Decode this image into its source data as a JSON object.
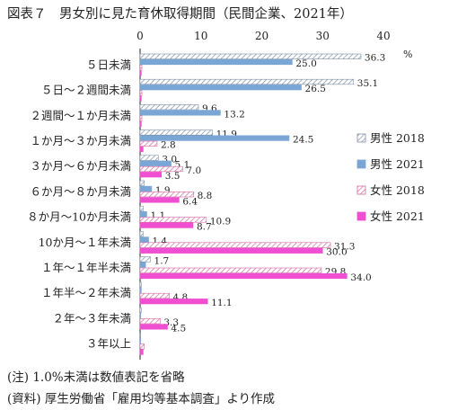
{
  "title": "図表７　男女別に見た育休取得期間（民間企業、2021年）",
  "notes": {
    "note1": "(注) 1.0%未満は数値表記を省略",
    "note2": "(資料) 厚生労働省「雇用均等基本調査」より作成"
  },
  "colors": {
    "male2018": "#ffffff",
    "male2018_hatch": "#7f8fa6",
    "male2021": "#7aa6d6",
    "female2018": "#ffffff",
    "female2018_hatch": "#d26aa0",
    "female2021": "#ef4fd0"
  },
  "chart_data": {
    "type": "bar",
    "orientation": "horizontal",
    "unit": "%",
    "xlim": [
      0,
      40
    ],
    "ticks": [
      0,
      10,
      20,
      30,
      40
    ],
    "categories": [
      "５日未満",
      "５日～２週間未満",
      "２週間～１か月未満",
      "１か月～３か月未満",
      "３か月～６か月未満",
      "６か月～８か月未満",
      "８か月～10か月未満",
      "10か月～１年未満",
      "１年～１年半未満",
      "１年半～２年未満",
      "２年～３年未満",
      "３年以上"
    ],
    "series": [
      {
        "name": "男性 2018",
        "values": [
          36.3,
          35.1,
          9.6,
          11.9,
          3.0,
          0.7,
          0.5,
          0.5,
          1.7,
          0.2,
          0.2,
          0.1
        ],
        "labels": [
          "36.3",
          "35.1",
          "9.6",
          "11.9",
          "3.0",
          "",
          "",
          "",
          "1.7",
          "",
          "",
          ""
        ]
      },
      {
        "name": "男性 2021",
        "values": [
          25.0,
          26.5,
          13.2,
          24.5,
          5.1,
          1.9,
          1.1,
          1.4,
          0.9,
          0.2,
          0.1,
          0.1
        ],
        "labels": [
          "25.0",
          "26.5",
          "13.2",
          "24.5",
          "5.1",
          "1.9",
          "1.1",
          "1.4",
          "",
          "",
          "",
          ""
        ]
      },
      {
        "name": "女性 2018",
        "values": [
          0.3,
          0.3,
          0.3,
          2.8,
          7.0,
          8.8,
          10.9,
          31.3,
          29.8,
          4.8,
          3.3,
          0.7
        ],
        "labels": [
          "",
          "",
          "",
          "2.8",
          "7.0",
          "8.8",
          "10.9",
          "31.3",
          "29.8",
          "4.8",
          "3.3",
          ""
        ]
      },
      {
        "name": "女性 2021",
        "values": [
          0.2,
          0.2,
          0.2,
          0.5,
          3.5,
          6.4,
          8.7,
          30.0,
          34.0,
          11.1,
          4.5,
          0.5
        ],
        "labels": [
          "",
          "",
          "",
          "",
          "3.5",
          "6.4",
          "8.7",
          "30.0",
          "34.0",
          "11.1",
          "4.5",
          ""
        ]
      }
    ],
    "legend": "right"
  }
}
